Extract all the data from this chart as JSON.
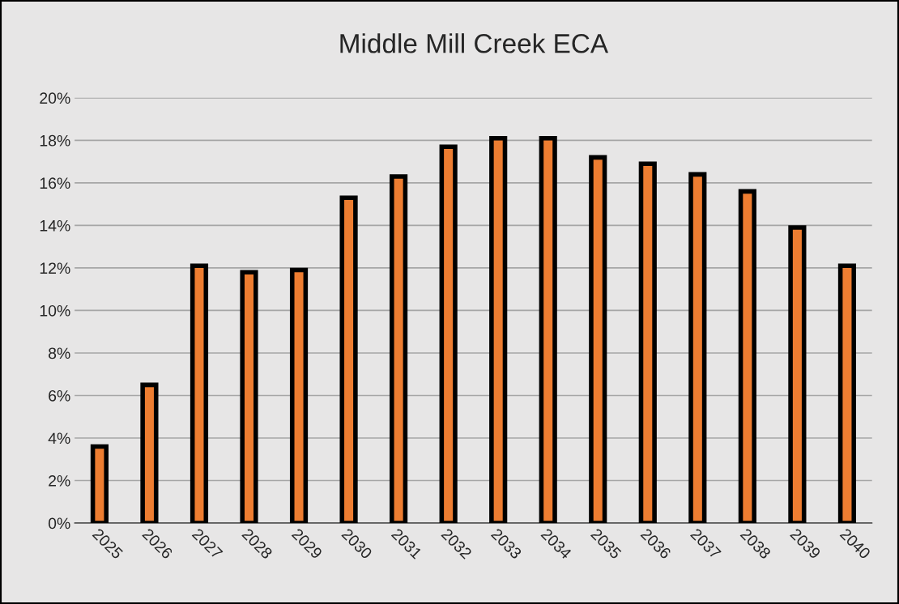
{
  "chart_data": {
    "type": "bar",
    "title": "Middle Mill Creek ECA",
    "categories": [
      "2025",
      "2026",
      "2027",
      "2028",
      "2029",
      "2030",
      "2031",
      "2032",
      "2033",
      "2034",
      "2035",
      "2036",
      "2037",
      "2038",
      "2039",
      "2040"
    ],
    "values": [
      3.6,
      6.5,
      12.1,
      11.8,
      11.9,
      15.3,
      16.3,
      17.7,
      18.1,
      18.1,
      17.2,
      16.9,
      16.4,
      15.6,
      13.9,
      12.1
    ],
    "color": "#ed7d31",
    "ylim": [
      0,
      20
    ],
    "yticks": [
      {
        "value": 0,
        "label": "0%"
      },
      {
        "value": 2,
        "label": "2%"
      },
      {
        "value": 4,
        "label": "4%"
      },
      {
        "value": 6,
        "label": "6%"
      },
      {
        "value": 8,
        "label": "8%"
      },
      {
        "value": 10,
        "label": "10%"
      },
      {
        "value": 12,
        "label": "12%"
      },
      {
        "value": 14,
        "label": "14%"
      },
      {
        "value": 16,
        "label": "16%"
      },
      {
        "value": 18,
        "label": "18%"
      },
      {
        "value": 20,
        "label": "20%"
      }
    ],
    "grid": "y"
  }
}
